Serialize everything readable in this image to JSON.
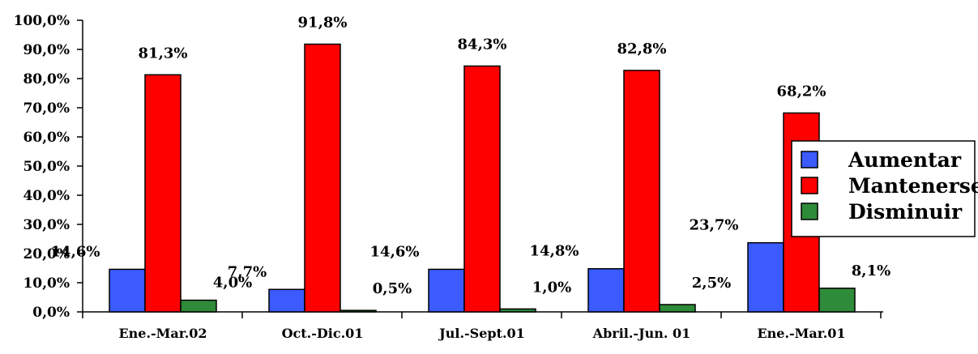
{
  "chart_data": {
    "type": "bar",
    "categories": [
      "Ene.-Mar.02",
      "Oct.-Dic.01",
      "Jul.-Sept.01",
      "Abril.-Jun. 01",
      "Ene.-Mar.01"
    ],
    "series": [
      {
        "name": "Aumentar",
        "values": [
          14.6,
          7.7,
          14.6,
          14.8,
          23.7
        ],
        "labels": [
          "14,6%",
          "7,7%",
          "14,6%",
          "14,8%",
          "23,7%"
        ]
      },
      {
        "name": "Mantenerse",
        "values": [
          81.3,
          91.8,
          84.3,
          82.8,
          68.2
        ],
        "labels": [
          "81,3%",
          "91,8%",
          "84,3%",
          "82,8%",
          "68,2%"
        ]
      },
      {
        "name": "Disminuir",
        "values": [
          4.0,
          0.5,
          1.0,
          2.5,
          8.1
        ],
        "labels": [
          "4,0%",
          "0,5%",
          "1,0%",
          "2,5%",
          "8,1%"
        ]
      }
    ],
    "colors": [
      "#3b5bff",
      "#ff0000",
      "#2e8b3a"
    ],
    "ylim": [
      0,
      100
    ],
    "yticks": [
      "0,0%",
      "10,0%",
      "20,0%",
      "30,0%",
      "40,0%",
      "50,0%",
      "60,0%",
      "70,0%",
      "80,0%",
      "90,0%",
      "100,0%"
    ],
    "legend_position": "right",
    "grid": false
  }
}
